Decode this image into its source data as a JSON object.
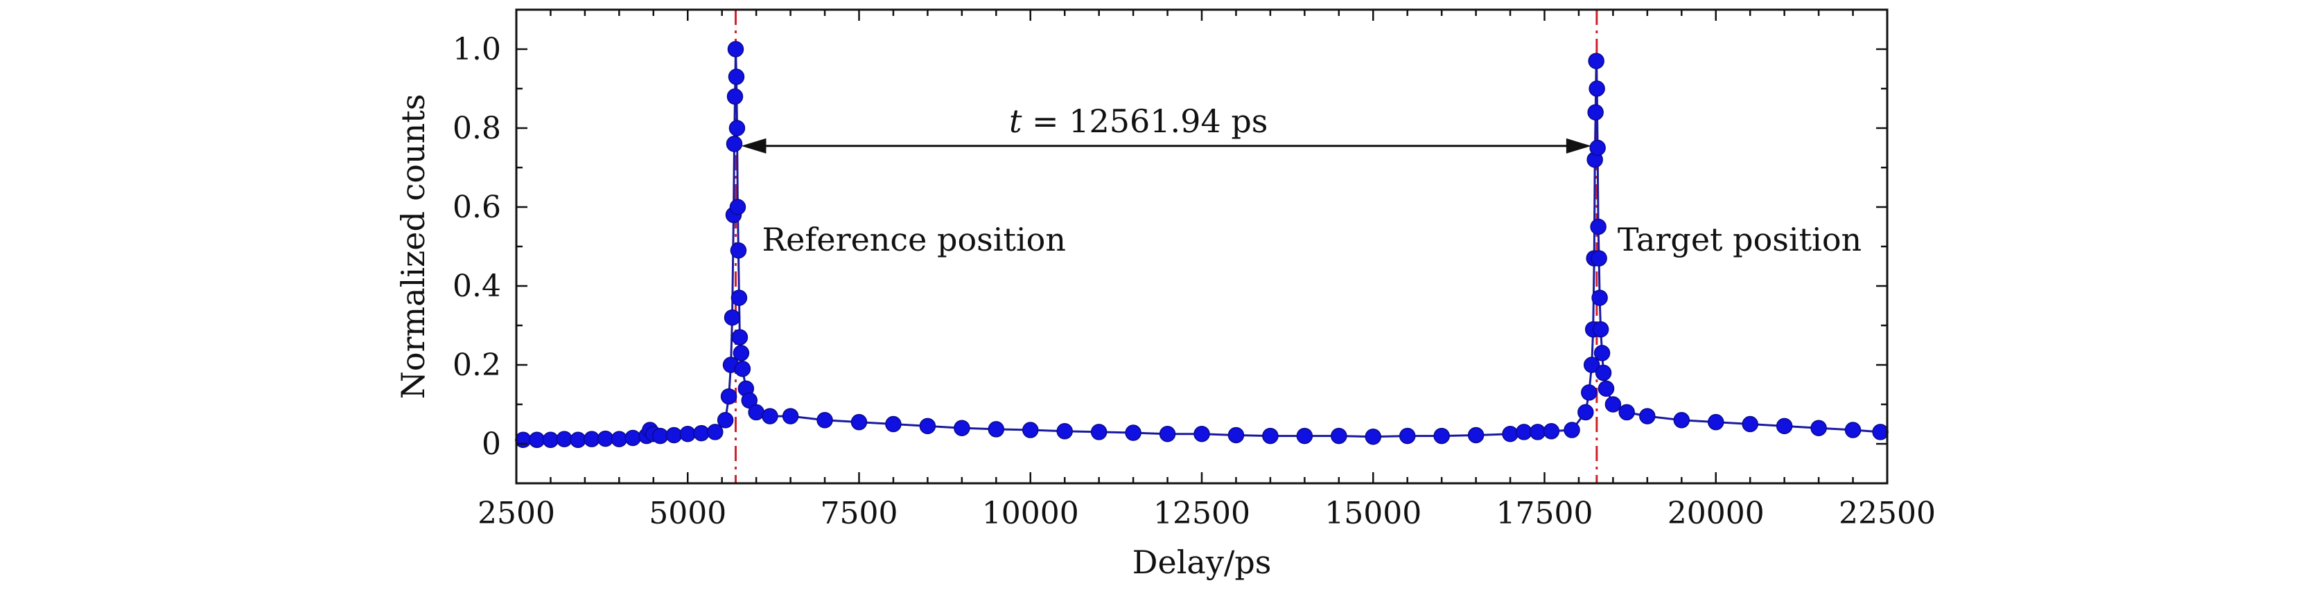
{
  "chart_data": {
    "type": "scatter",
    "xlabel": "Delay/ps",
    "ylabel": "Normalized counts",
    "xlim": [
      2500,
      22500
    ],
    "ylim": [
      -0.1,
      1.1
    ],
    "x_ticks": [
      2500,
      5000,
      7500,
      10000,
      12500,
      15000,
      17500,
      20000,
      22500
    ],
    "y_ticks": [
      0,
      0.2,
      0.4,
      0.6,
      0.8,
      1.0
    ],
    "y_tick_labels": [
      "0",
      "0.2",
      "0.4",
      "0.6",
      "0.8",
      "1.0"
    ],
    "marker_color": "#1010e0",
    "line_color": "#1a1aa0",
    "reference_line_color": "#d0202a",
    "series": [
      {
        "x": [
          2600,
          2800,
          3000,
          3200,
          3400,
          3600,
          3800,
          4000,
          4200,
          4400,
          4450,
          4500,
          4600,
          4800,
          5000,
          5200,
          5400,
          5550,
          5600,
          5630,
          5650,
          5670,
          5680,
          5690,
          5700,
          5710,
          5720,
          5730,
          5740,
          5750,
          5760,
          5780,
          5800,
          5850,
          5900,
          6000,
          6200,
          6500,
          7000,
          7500,
          8000,
          8500,
          9000,
          9500,
          10000,
          10500,
          11000,
          11500,
          12000,
          12500,
          13000,
          13500,
          14000,
          14500,
          15000,
          15500,
          16000,
          16500,
          17000,
          17200,
          17400,
          17600,
          17900,
          18100,
          18150,
          18190,
          18210,
          18225,
          18235,
          18245,
          18255,
          18265,
          18275,
          18285,
          18295,
          18305,
          18320,
          18340,
          18360,
          18400,
          18500,
          18700,
          19000,
          19500,
          20000,
          20500,
          21000,
          21500,
          22000,
          22400
        ],
        "y": [
          0.01,
          0.01,
          0.01,
          0.012,
          0.01,
          0.012,
          0.013,
          0.012,
          0.015,
          0.02,
          0.035,
          0.025,
          0.02,
          0.022,
          0.025,
          0.027,
          0.03,
          0.06,
          0.12,
          0.2,
          0.32,
          0.58,
          0.76,
          0.88,
          1.0,
          0.93,
          0.8,
          0.6,
          0.49,
          0.37,
          0.27,
          0.23,
          0.19,
          0.14,
          0.11,
          0.08,
          0.07,
          0.07,
          0.06,
          0.055,
          0.05,
          0.045,
          0.04,
          0.037,
          0.035,
          0.032,
          0.03,
          0.028,
          0.025,
          0.025,
          0.022,
          0.02,
          0.02,
          0.02,
          0.018,
          0.02,
          0.02,
          0.022,
          0.025,
          0.03,
          0.03,
          0.032,
          0.035,
          0.08,
          0.13,
          0.2,
          0.29,
          0.47,
          0.72,
          0.84,
          0.97,
          0.9,
          0.75,
          0.55,
          0.47,
          0.37,
          0.29,
          0.23,
          0.18,
          0.14,
          0.1,
          0.08,
          0.07,
          0.06,
          0.055,
          0.05,
          0.045,
          0.04,
          0.035,
          0.03
        ]
      }
    ],
    "reference_lines_x": [
      5700,
      18262
    ],
    "annotations": {
      "arrow": {
        "x1": 5700,
        "x2": 18262,
        "y": 0.76
      },
      "arrow_label": "t = 12561.94 ps",
      "reference_label": "Reference position",
      "target_label": "Target position"
    }
  }
}
